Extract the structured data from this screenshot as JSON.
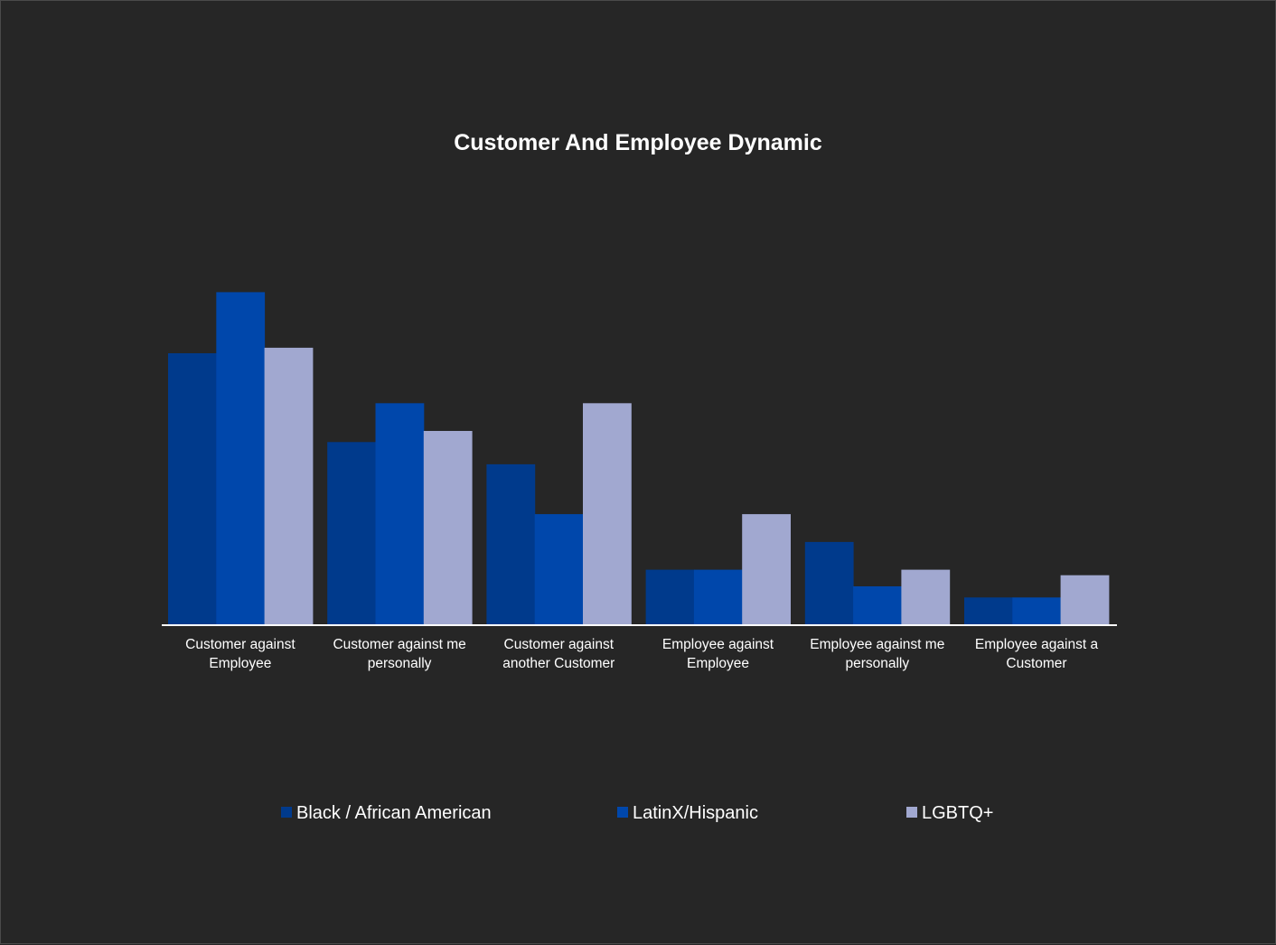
{
  "chart_data": {
    "type": "bar",
    "title": "Customer And Employee Dynamic",
    "xlabel": "",
    "ylabel": "",
    "categories": [
      [
        "Customer against",
        "Employee"
      ],
      [
        "Customer against me",
        "personally"
      ],
      [
        "Customer against",
        "another Customer"
      ],
      [
        "Employee against",
        "Employee"
      ],
      [
        "Employee against me",
        "personally"
      ],
      [
        "Employee against a",
        "Customer"
      ]
    ],
    "series": [
      {
        "name": "Black / African American",
        "color": "#003a8c",
        "values": [
          49,
          33,
          29,
          10,
          15,
          5
        ]
      },
      {
        "name": "LatinX/Hispanic",
        "color": "#0047ab",
        "values": [
          60,
          40,
          20,
          10,
          7,
          5
        ]
      },
      {
        "name": "LGBTQ+",
        "color": "#a1a8d0",
        "values": [
          50,
          35,
          40,
          20,
          10,
          9
        ]
      }
    ],
    "ylim": [
      0,
      70
    ],
    "grid": false,
    "legend_position": "bottom"
  }
}
